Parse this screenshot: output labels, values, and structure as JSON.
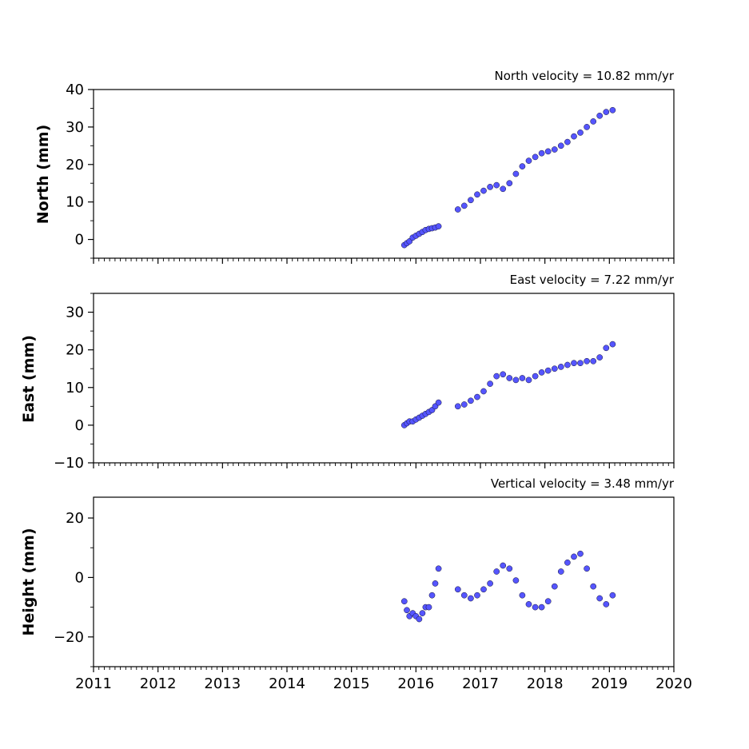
{
  "chart_data": [
    {
      "type": "scatter",
      "title": "North velocity = 10.82 mm/yr",
      "xlabel": "",
      "ylabel": "North (mm)",
      "xlim": [
        2011,
        2020
      ],
      "ylim": [
        -5,
        40
      ],
      "yticks": [
        0,
        10,
        20,
        30,
        40
      ],
      "ytick_labels": [
        "0",
        "10",
        "20",
        "30",
        "40"
      ],
      "xticks": [
        2011,
        2012,
        2013,
        2014,
        2015,
        2016,
        2017,
        2018,
        2019,
        2020
      ],
      "xtick_labels": [],
      "grid": false,
      "series": [
        {
          "color": "#5555ff",
          "edge_color": "#111133",
          "x": [
            2015.82,
            2015.86,
            2015.9,
            2015.95,
            2016.0,
            2016.05,
            2016.1,
            2016.15,
            2016.2,
            2016.25,
            2016.3,
            2016.35,
            2016.65,
            2016.75,
            2016.85,
            2016.95,
            2017.05,
            2017.15,
            2017.25,
            2017.35,
            2017.45,
            2017.55,
            2017.65,
            2017.75,
            2017.85,
            2017.95,
            2018.05,
            2018.15,
            2018.25,
            2018.35,
            2018.45,
            2018.55,
            2018.65,
            2018.75,
            2018.85,
            2018.95,
            2019.05
          ],
          "y": [
            -1.5,
            -1.0,
            -0.5,
            0.5,
            1.0,
            1.5,
            2.0,
            2.5,
            2.8,
            3.0,
            3.2,
            3.5,
            8.0,
            9.0,
            10.5,
            12.0,
            13.0,
            14.0,
            14.5,
            13.5,
            15.0,
            17.5,
            19.5,
            21.0,
            22.0,
            23.0,
            23.5,
            24.0,
            25.0,
            26.0,
            27.5,
            28.5,
            30.0,
            31.5,
            33.0,
            34.0,
            34.5
          ]
        }
      ]
    },
    {
      "type": "scatter",
      "title": "East velocity = 7.22 mm/yr",
      "xlabel": "",
      "ylabel": "East (mm)",
      "xlim": [
        2011,
        2020
      ],
      "ylim": [
        -10,
        35
      ],
      "yticks": [
        -10,
        0,
        10,
        20,
        30
      ],
      "ytick_labels": [
        "−10",
        "0",
        "10",
        "20",
        "30"
      ],
      "xticks": [
        2011,
        2012,
        2013,
        2014,
        2015,
        2016,
        2017,
        2018,
        2019,
        2020
      ],
      "xtick_labels": [],
      "grid": false,
      "series": [
        {
          "color": "#5555ff",
          "edge_color": "#111133",
          "x": [
            2015.82,
            2015.86,
            2015.9,
            2015.95,
            2016.0,
            2016.05,
            2016.1,
            2016.15,
            2016.2,
            2016.25,
            2016.3,
            2016.35,
            2016.65,
            2016.75,
            2016.85,
            2016.95,
            2017.05,
            2017.15,
            2017.25,
            2017.35,
            2017.45,
            2017.55,
            2017.65,
            2017.75,
            2017.85,
            2017.95,
            2018.05,
            2018.15,
            2018.25,
            2018.35,
            2018.45,
            2018.55,
            2018.65,
            2018.75,
            2018.85,
            2018.95,
            2019.05
          ],
          "y": [
            0.0,
            0.5,
            1.0,
            1.0,
            1.5,
            2.0,
            2.5,
            3.0,
            3.5,
            4.0,
            5.0,
            6.0,
            5.0,
            5.5,
            6.5,
            7.5,
            9.0,
            11.0,
            13.0,
            13.5,
            12.5,
            12.0,
            12.5,
            12.0,
            13.0,
            14.0,
            14.5,
            15.0,
            15.5,
            16.0,
            16.5,
            16.5,
            17.0,
            17.0,
            18.0,
            20.5,
            21.5
          ]
        }
      ]
    },
    {
      "type": "scatter",
      "title": "Vertical velocity = 3.48 mm/yr",
      "xlabel": "",
      "ylabel": "Height (mm)",
      "xlim": [
        2011,
        2020
      ],
      "ylim": [
        -30,
        27
      ],
      "yticks": [
        -20,
        0,
        20
      ],
      "ytick_labels": [
        "−20",
        "0",
        "20"
      ],
      "xticks": [
        2011,
        2012,
        2013,
        2014,
        2015,
        2016,
        2017,
        2018,
        2019,
        2020
      ],
      "xtick_labels": [
        "2011",
        "2012",
        "2013",
        "2014",
        "2015",
        "2016",
        "2017",
        "2018",
        "2019",
        "2020"
      ],
      "grid": false,
      "series": [
        {
          "color": "#5555ff",
          "edge_color": "#111133",
          "x": [
            2015.82,
            2015.86,
            2015.9,
            2015.95,
            2016.0,
            2016.05,
            2016.1,
            2016.15,
            2016.2,
            2016.25,
            2016.3,
            2016.35,
            2016.65,
            2016.75,
            2016.85,
            2016.95,
            2017.05,
            2017.15,
            2017.25,
            2017.35,
            2017.45,
            2017.55,
            2017.65,
            2017.75,
            2017.85,
            2017.95,
            2018.05,
            2018.15,
            2018.25,
            2018.35,
            2018.45,
            2018.55,
            2018.65,
            2018.75,
            2018.85,
            2018.95,
            2019.05
          ],
          "y": [
            -8,
            -11,
            -13,
            -12,
            -13,
            -14,
            -12,
            -10,
            -10,
            -6,
            -2,
            3,
            -4,
            -6,
            -7,
            -6,
            -4,
            -2,
            2,
            4,
            3,
            -1,
            -6,
            -9,
            -10,
            -10,
            -8,
            -3,
            2,
            5,
            7,
            8,
            3,
            -3,
            -7,
            -9,
            -6
          ]
        }
      ]
    }
  ]
}
